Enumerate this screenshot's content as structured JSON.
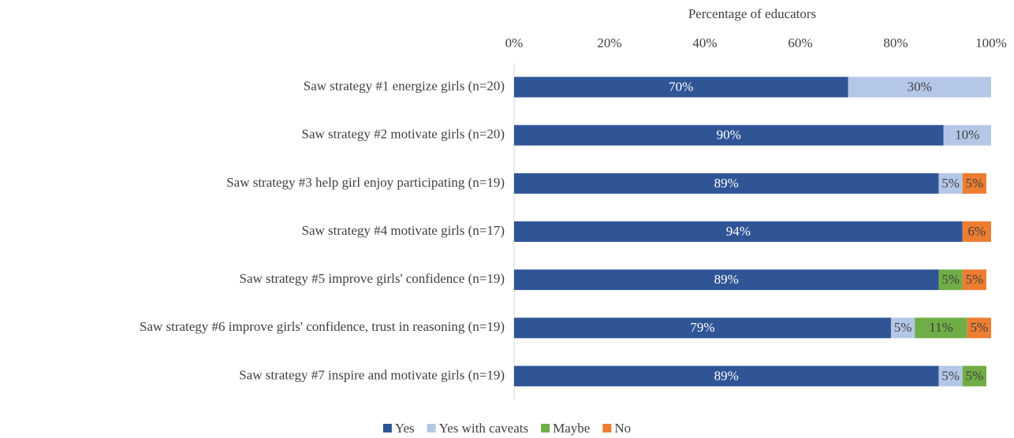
{
  "chart_data": {
    "type": "stacked-bar-horizontal",
    "x_label": "Percentage of educators",
    "categories": [
      "Saw strategy #1 energize girls (n=20)",
      "Saw strategy #2 motivate girls (n=20)",
      "Saw strategy #3 help girl enjoy participating (n=19)",
      "Saw strategy #4 motivate girls (n=17)",
      "Saw strategy #5 improve girls' confidence (n=19)",
      "Saw strategy #6 improve girls' confidence, trust in reasoning (n=19)",
      "Saw strategy #7 inspire and motivate girls (n=19)"
    ],
    "series": [
      {
        "name": "Yes",
        "color": "#2f5597",
        "values": [
          70,
          90,
          89,
          94,
          89,
          79,
          89
        ],
        "value_labels": [
          "70%",
          "90%",
          "89%",
          "94%",
          "89%",
          "79%",
          "89%"
        ]
      },
      {
        "name": "Yes with caveats",
        "color": "#b4c7e7",
        "values": [
          30,
          10,
          5,
          null,
          null,
          5,
          5
        ],
        "value_labels": [
          "30%",
          "10%",
          "5%",
          null,
          null,
          "5%",
          "5%"
        ]
      },
      {
        "name": "Maybe",
        "color": "#70ad47",
        "values": [
          null,
          null,
          null,
          null,
          5,
          11,
          5
        ],
        "value_labels": [
          null,
          null,
          null,
          null,
          "5%",
          "11%",
          "5%"
        ]
      },
      {
        "name": "No",
        "color": "#ed7d31",
        "values": [
          null,
          null,
          5,
          6,
          5,
          5,
          null
        ],
        "value_labels": [
          null,
          null,
          "5%",
          "6%",
          "5%",
          "5%",
          null
        ]
      }
    ],
    "xlim": [
      0,
      100
    ],
    "xticks": [
      {
        "value": 0,
        "label": "0%"
      },
      {
        "value": 20,
        "label": "20%"
      },
      {
        "value": 40,
        "label": "40%"
      },
      {
        "value": 60,
        "label": "60%"
      },
      {
        "value": 80,
        "label": "80%"
      },
      {
        "value": 100,
        "label": "100%"
      }
    ],
    "legend": "bottom"
  }
}
